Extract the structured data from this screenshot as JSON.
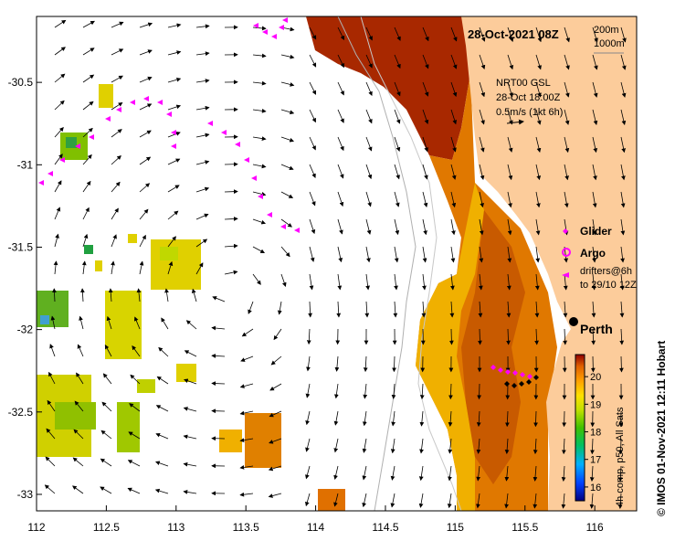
{
  "map": {
    "title_date": "28-Oct-2021 08Z",
    "isobaths": [
      "200m",
      "1000m"
    ],
    "current_label": [
      "NRT00 GSL",
      "28-Oct 18:00Z",
      "0.5m/s (1kt 6h)"
    ],
    "legend": {
      "glider": "Glider",
      "argo": "Argo",
      "drifters": [
        "drifters@6h",
        "to 29/10 12Z"
      ]
    },
    "city": "Perth",
    "colorbar": {
      "ticks": [
        "16",
        "17",
        "18",
        "19",
        "20"
      ],
      "label": "4h comp, p50, All Sats",
      "range": [
        15.5,
        20.8
      ]
    },
    "credit": "© IMOS 01-Nov-2021 12:11 Hobart",
    "x_ticks": [
      "112",
      "112.5",
      "113",
      "113.5",
      "114",
      "114.5",
      "115",
      "115.5",
      "116"
    ],
    "y_ticks": [
      "-30.5",
      "-31",
      "-31.5",
      "-32",
      "-32.5",
      "-33"
    ],
    "lon_range": [
      112,
      116.3
    ],
    "lat_range": [
      -33.1,
      -30.1
    ],
    "colors": {
      "land": "#fccc9b",
      "glider": "#ff00ff",
      "argo": "#ff00ff",
      "drifter": "#ff00ff"
    }
  }
}
